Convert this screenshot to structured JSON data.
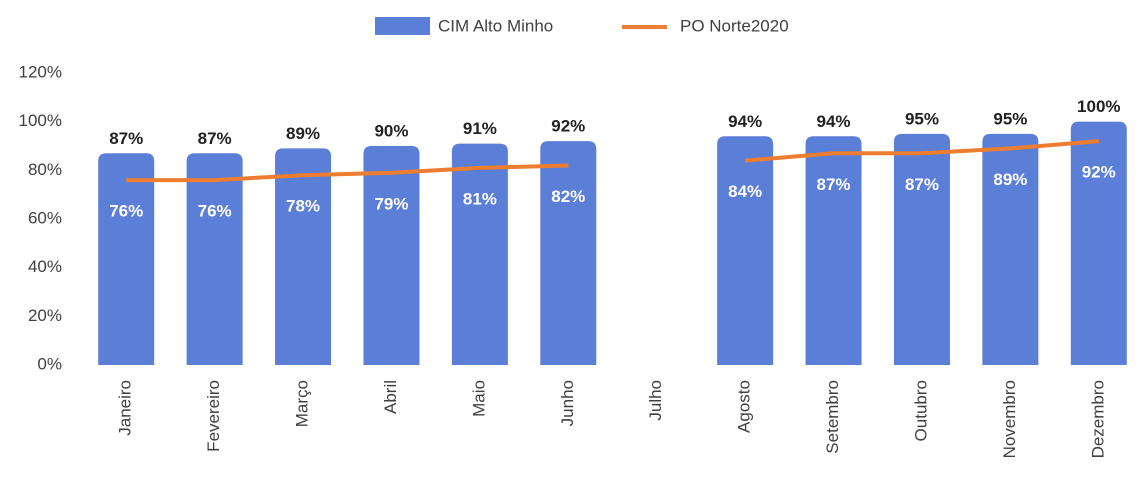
{
  "chart_data": {
    "type": "bar",
    "categories": [
      "Janeiro",
      "Fevereiro",
      "Março",
      "Abril",
      "Maio",
      "Junho",
      "Julho",
      "Agosto",
      "Setembro",
      "Outubro",
      "Novembro",
      "Dezembro"
    ],
    "series": [
      {
        "name": "CIM Alto Minho",
        "type": "bar",
        "color": "#5b7fd6",
        "values": [
          87,
          87,
          89,
          90,
          91,
          92,
          null,
          94,
          94,
          95,
          95,
          100
        ],
        "value_labels": [
          "87%",
          "87%",
          "89%",
          "90%",
          "91%",
          "92%",
          null,
          "94%",
          "94%",
          "95%",
          "95%",
          "100%"
        ]
      },
      {
        "name": "PO Norte2020",
        "type": "line",
        "color": "#ed7d31",
        "values": [
          76,
          76,
          78,
          79,
          81,
          82,
          null,
          84,
          87,
          87,
          89,
          92
        ],
        "value_labels": [
          "76%",
          "76%",
          "78%",
          "79%",
          "81%",
          "82%",
          null,
          "84%",
          "87%",
          "87%",
          "89%",
          "92%"
        ]
      }
    ],
    "ylim": [
      0,
      120
    ],
    "yticks": [
      {
        "value": 0,
        "label": "0%"
      },
      {
        "value": 20,
        "label": "20%"
      },
      {
        "value": 40,
        "label": "40%"
      },
      {
        "value": 60,
        "label": "60%"
      },
      {
        "value": 80,
        "label": "80%"
      },
      {
        "value": 100,
        "label": "100%"
      },
      {
        "value": 120,
        "label": "120%"
      }
    ],
    "grid": false,
    "legend": "top"
  }
}
